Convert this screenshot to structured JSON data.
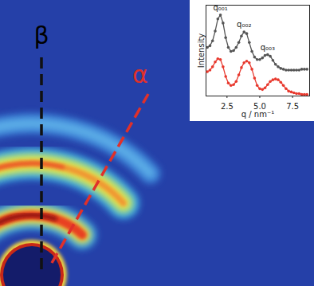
{
  "chart_data": {
    "type": "line",
    "x_label": "q / nm⁻¹",
    "y_label": "Intensity",
    "xlim": [
      0.9,
      8.8
    ],
    "xticks": [
      2.5,
      {
        "value": 5,
        "label": "5.0"
      },
      7.5
    ],
    "ylim": [
      0,
      1.12
    ],
    "yticks": [],
    "tick_labels": "x",
    "x": [
      1.0,
      1.2,
      1.4,
      1.6,
      1.8,
      2.0,
      2.2,
      2.4,
      2.6,
      2.8,
      3.0,
      3.2,
      3.4,
      3.6,
      3.8,
      4.0,
      4.2,
      4.4,
      4.6,
      4.8,
      5.0,
      5.2,
      5.4,
      5.6,
      5.8,
      6.0,
      6.2,
      6.4,
      6.6,
      6.8,
      7.0,
      7.2,
      7.4,
      7.6,
      7.8,
      8.0,
      8.2,
      8.4,
      8.6
    ],
    "series": [
      {
        "color": "#555555",
        "marker": "circle",
        "line_style": "solid",
        "values": [
          0.6,
          0.62,
          0.68,
          0.8,
          0.95,
          1.0,
          0.9,
          0.72,
          0.6,
          0.55,
          0.56,
          0.6,
          0.66,
          0.74,
          0.79,
          0.77,
          0.66,
          0.55,
          0.48,
          0.45,
          0.45,
          0.47,
          0.5,
          0.51,
          0.49,
          0.44,
          0.39,
          0.36,
          0.34,
          0.33,
          0.32,
          0.32,
          0.32,
          0.32,
          0.32,
          0.32,
          0.33,
          0.33,
          0.33
        ]
      },
      {
        "color": "#e8392e",
        "marker": "circle",
        "line_style": "solid",
        "values": [
          0.3,
          0.32,
          0.36,
          0.42,
          0.46,
          0.45,
          0.36,
          0.24,
          0.16,
          0.13,
          0.14,
          0.18,
          0.26,
          0.35,
          0.41,
          0.43,
          0.41,
          0.33,
          0.22,
          0.13,
          0.09,
          0.08,
          0.1,
          0.14,
          0.18,
          0.2,
          0.21,
          0.2,
          0.17,
          0.13,
          0.09,
          0.06,
          0.05,
          0.04,
          0.03,
          0.03,
          0.02,
          0.02,
          0.02
        ]
      }
    ],
    "annotations": [
      {
        "text": "q₀₀₁",
        "x": 2.0
      },
      {
        "text": "q₀₀₂",
        "x": 3.8
      },
      {
        "text": "q₀₀₃",
        "x": 5.6
      }
    ],
    "image_labels": [
      {
        "text": "β",
        "color": "#000000"
      },
      {
        "text": "α",
        "color": "#e0302a"
      }
    ]
  }
}
